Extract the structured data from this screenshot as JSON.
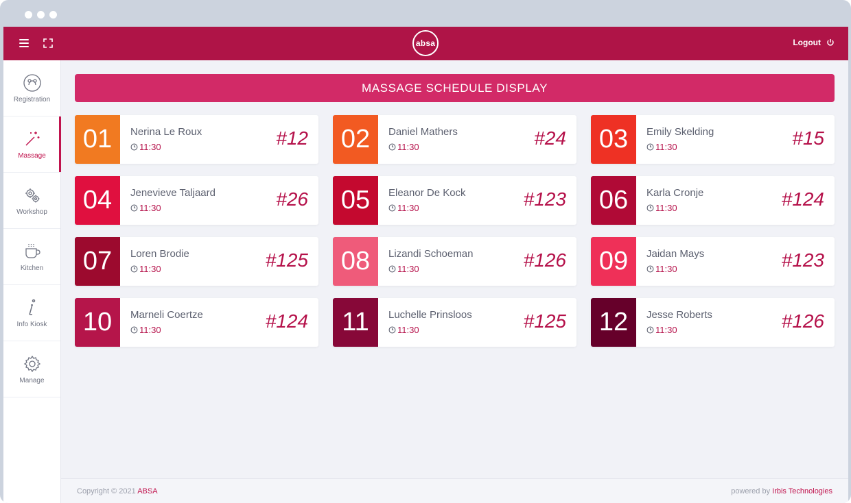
{
  "header": {
    "logo_text": "absa",
    "logout_label": "Logout"
  },
  "sidebar": {
    "items": [
      {
        "label": "Registration",
        "icon": "registration-icon",
        "active": false
      },
      {
        "label": "Massage",
        "icon": "magic-wand-icon",
        "active": true
      },
      {
        "label": "Workshop",
        "icon": "gears-icon",
        "active": false
      },
      {
        "label": "Kitchen",
        "icon": "coffee-cup-icon",
        "active": false
      },
      {
        "label": "Info Kiosk",
        "icon": "info-icon",
        "active": false
      },
      {
        "label": "Manage",
        "icon": "gear-icon",
        "active": false
      }
    ]
  },
  "main": {
    "title": "MASSAGE SCHEDULE DISPLAY",
    "cards": [
      {
        "num": "01",
        "name": "Nerina Le Roux",
        "time": "11:30",
        "room": "#12",
        "color": "#f17a21"
      },
      {
        "num": "02",
        "name": "Daniel Mathers",
        "time": "11:30",
        "room": "#24",
        "color": "#f25a22"
      },
      {
        "num": "03",
        "name": "Emily Skelding",
        "time": "11:30",
        "room": "#15",
        "color": "#ee3124"
      },
      {
        "num": "04",
        "name": "Jenevieve Taljaard",
        "time": "11:30",
        "room": "#26",
        "color": "#e0103f"
      },
      {
        "num": "05",
        "name": "Eleanor De Kock",
        "time": "11:30",
        "room": "#123",
        "color": "#c4092f"
      },
      {
        "num": "06",
        "name": "Karla Cronje",
        "time": "11:30",
        "room": "#124",
        "color": "#b00a36"
      },
      {
        "num": "07",
        "name": "Loren Brodie",
        "time": "11:30",
        "room": "#125",
        "color": "#9c0a2e"
      },
      {
        "num": "08",
        "name": "Lizandi Schoeman",
        "time": "11:30",
        "room": "#126",
        "color": "#ef5b7a"
      },
      {
        "num": "09",
        "name": "Jaidan Mays",
        "time": "11:30",
        "room": "#123",
        "color": "#ef3058"
      },
      {
        "num": "10",
        "name": "Marneli Coertze",
        "time": "11:30",
        "room": "#124",
        "color": "#b5154a"
      },
      {
        "num": "11",
        "name": "Luchelle Prinsloos",
        "time": "11:30",
        "room": "#125",
        "color": "#870838"
      },
      {
        "num": "12",
        "name": "Jesse Roberts",
        "time": "11:30",
        "room": "#126",
        "color": "#66002a"
      }
    ]
  },
  "footer": {
    "copyright_prefix": "Copyright © 2021 ",
    "copyright_brand": "ABSA",
    "powered_prefix": "powered by ",
    "powered_brand": "Irbis Technologies"
  }
}
